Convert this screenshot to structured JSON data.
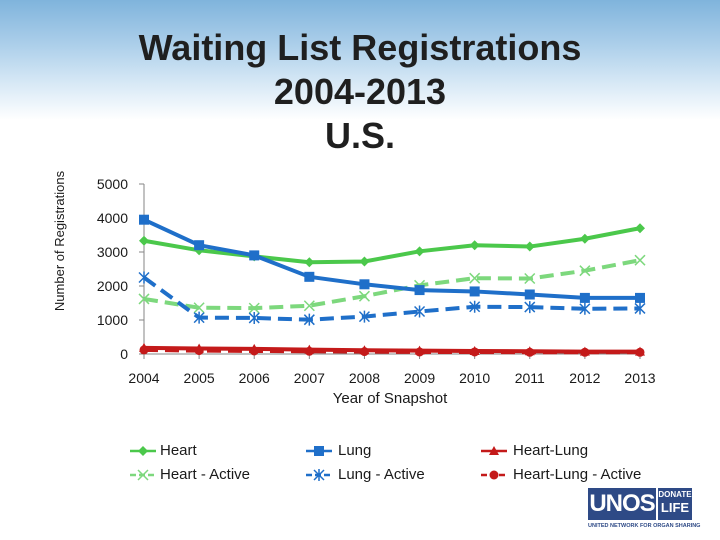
{
  "slide": {
    "title_lines": [
      "Waiting List Registrations",
      "2004-2013",
      "U.S."
    ]
  },
  "chart_data": {
    "type": "line",
    "title": "Waiting List Registrations 2004-2013 U.S.",
    "xlabel": "Year of Snapshot",
    "ylabel": "Number of Registrations",
    "x": [
      2004,
      2005,
      2006,
      2007,
      2008,
      2009,
      2010,
      2011,
      2012,
      2013
    ],
    "x_tick_labels": [
      "2004",
      "2005",
      "2006",
      "2007",
      "2008",
      "2009",
      "2010",
      "2011",
      "2012",
      "2013"
    ],
    "ylim": [
      0,
      5000
    ],
    "y_ticks": [
      0,
      1000,
      2000,
      3000,
      4000,
      5000
    ],
    "y_tick_labels": [
      "0",
      "1000",
      "2000",
      "3000",
      "4000",
      "5000"
    ],
    "grid": false,
    "legend_position": "bottom",
    "series": [
      {
        "name": "Heart",
        "color": "#4bc84b",
        "dashed": false,
        "marker": "diamond",
        "values": [
          3330,
          3050,
          2870,
          2700,
          2720,
          3020,
          3200,
          3160,
          3390,
          3700
        ]
      },
      {
        "name": "Heart - Active",
        "color": "#7dd87d",
        "dashed": true,
        "marker": "x",
        "values": [
          1620,
          1360,
          1350,
          1420,
          1700,
          2020,
          2230,
          2220,
          2450,
          2760
        ]
      },
      {
        "name": "Lung",
        "color": "#1f6fc9",
        "dashed": false,
        "marker": "square",
        "values": [
          3950,
          3200,
          2900,
          2270,
          2050,
          1880,
          1840,
          1750,
          1650,
          1650
        ]
      },
      {
        "name": "Lung - Active",
        "color": "#1f6fc9",
        "dashed": true,
        "marker": "star",
        "values": [
          2250,
          1070,
          1060,
          1010,
          1100,
          1250,
          1390,
          1380,
          1330,
          1340
        ]
      },
      {
        "name": "Heart-Lung",
        "color": "#c41a1a",
        "dashed": false,
        "marker": "triangle",
        "values": [
          180,
          160,
          150,
          130,
          110,
          100,
          90,
          80,
          70,
          70
        ]
      },
      {
        "name": "Heart-Lung - Active",
        "color": "#c41a1a",
        "dashed": true,
        "marker": "circle",
        "values": [
          120,
          100,
          90,
          80,
          70,
          60,
          60,
          50,
          50,
          50
        ]
      }
    ]
  },
  "logo": {
    "name": "UNOS",
    "badge_top": "DONATE",
    "badge_bottom": "LIFE",
    "tagline": "UNITED NETWORK FOR ORGAN SHARING"
  }
}
